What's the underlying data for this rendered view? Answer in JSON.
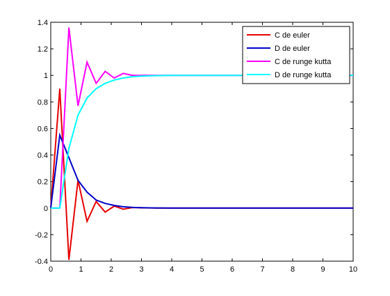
{
  "chart_data": {
    "type": "line",
    "xlim": [
      0,
      10
    ],
    "ylim": [
      -0.4,
      1.4
    ],
    "xticks": [
      "0",
      "1",
      "2",
      "3",
      "4",
      "5",
      "6",
      "7",
      "8",
      "9",
      "10"
    ],
    "yticks": [
      "-0.4",
      "-0.2",
      "0",
      "0.2",
      "0.4",
      "0.6",
      "0.8",
      "1",
      "1.2",
      "1.4"
    ],
    "grid": false,
    "legend_position": "top-right",
    "series": [
      {
        "name": "C de euler",
        "color": "#e60000",
        "x": [
          0,
          0.3,
          0.6,
          0.9,
          1.2,
          1.5,
          1.8,
          2.1,
          2.4,
          2.7,
          3.0,
          3.5,
          4,
          5,
          6,
          7,
          8,
          9,
          10
        ],
        "y": [
          0,
          0.9,
          -0.39,
          0.21,
          -0.1,
          0.05,
          -0.03,
          0.015,
          -0.008,
          0.004,
          0.002,
          0,
          0,
          0,
          0,
          0,
          0,
          0,
          0
        ]
      },
      {
        "name": "D de euler",
        "color": "#0000cc",
        "x": [
          0,
          0.3,
          0.6,
          0.9,
          1.2,
          1.5,
          1.8,
          2.1,
          2.4,
          2.7,
          3.0,
          3.5,
          4,
          5,
          6,
          7,
          8,
          9,
          10
        ],
        "y": [
          0,
          0.55,
          0.38,
          0.21,
          0.12,
          0.06,
          0.035,
          0.02,
          0.01,
          0.005,
          0.003,
          0.001,
          0,
          0,
          0,
          0,
          0,
          0,
          0
        ]
      },
      {
        "name": "C de runge kutta",
        "color": "#ff00ff",
        "x": [
          0,
          0.3,
          0.6,
          0.9,
          1.2,
          1.5,
          1.8,
          2.1,
          2.4,
          2.7,
          3.0,
          3.5,
          4,
          5,
          6,
          7,
          8,
          9,
          10
        ],
        "y": [
          0,
          0,
          1.36,
          0.77,
          1.1,
          0.94,
          1.03,
          0.98,
          1.015,
          1.0,
          1.0,
          1.0,
          1.0,
          1.0,
          1.0,
          1.0,
          1.0,
          1.0,
          1.0
        ]
      },
      {
        "name": "D de runge kutta",
        "color": "#00ffff",
        "x": [
          0,
          0.3,
          0.6,
          0.9,
          1.2,
          1.5,
          1.8,
          2.1,
          2.4,
          2.7,
          3.0,
          3.5,
          4,
          5,
          6,
          7,
          8,
          9,
          10
        ],
        "y": [
          0,
          0,
          0.45,
          0.7,
          0.83,
          0.9,
          0.94,
          0.965,
          0.98,
          0.99,
          0.995,
          0.998,
          1.0,
          1.0,
          1.0,
          1.0,
          1.0,
          1.0,
          1.0
        ]
      }
    ]
  }
}
